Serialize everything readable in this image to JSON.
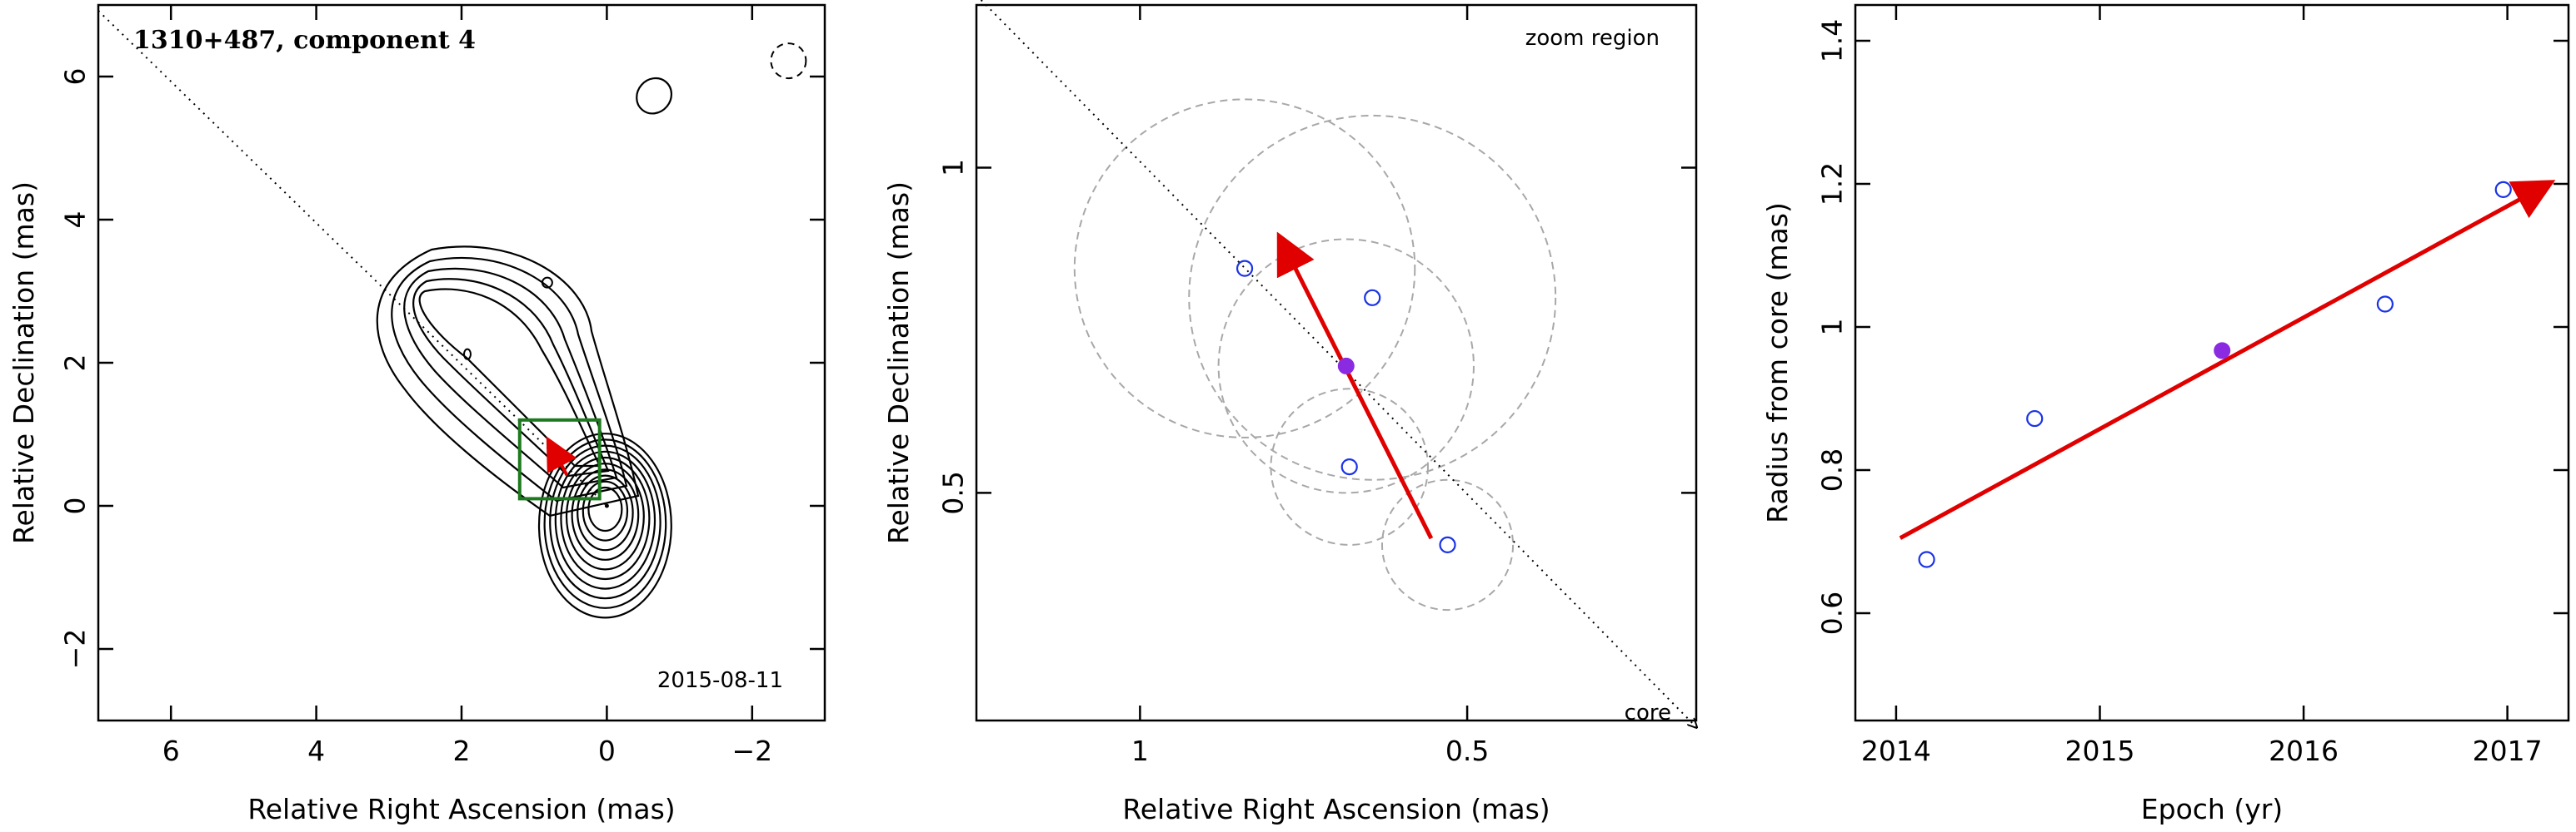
{
  "chart_data": [
    {
      "type": "contour",
      "title": "1310+487, component 4",
      "annotation": "2015-08-11",
      "xlabel": "Relative Right Ascension (mas)",
      "ylabel": "Relative Declination (mas)",
      "xlim": [
        7,
        -3
      ],
      "ylim": [
        -3,
        7
      ],
      "xticks": [
        6,
        4,
        2,
        0,
        -2
      ],
      "yticks": [
        -2,
        0,
        2,
        4,
        6
      ],
      "xtick_labels": [
        "6",
        "4",
        "2",
        "0",
        "−2"
      ],
      "ytick_labels": [
        "−2",
        "0",
        "2",
        "4",
        "6"
      ],
      "zoom_box": {
        "x": [
          1.2,
          0.1
        ],
        "y": [
          0.1,
          1.2
        ],
        "color": "#1e7a1e"
      },
      "direction_line": {
        "from": [
          7.0,
          6.92
        ],
        "to": [
          0,
          0
        ]
      },
      "motion_arrow": {
        "from": [
          0.55,
          0.43
        ],
        "to": [
          0.79,
          0.89
        ],
        "color": "#e00000"
      },
      "component_position": [
        0.69,
        0.7
      ],
      "core_position": [
        0,
        0
      ]
    },
    {
      "type": "scatter",
      "annotation": "zoom region",
      "core_label": "core",
      "xlabel": "Relative Right Ascension (mas)",
      "ylabel": "Relative Declination (mas)",
      "xlim": [
        1.25,
        0.15
      ],
      "ylim": [
        0.15,
        1.25
      ],
      "xticks": [
        1,
        0.5
      ],
      "yticks": [
        0.5,
        1
      ],
      "xtick_labels": [
        "1",
        "0.5"
      ],
      "ytick_labels": [
        "0.5",
        "1"
      ],
      "points": [
        {
          "x": 0.84,
          "y": 0.845,
          "radius": 0.26,
          "filled": false
        },
        {
          "x": 0.645,
          "y": 0.8,
          "radius": 0.28,
          "filled": false
        },
        {
          "x": 0.68,
          "y": 0.54,
          "radius": 0.12,
          "filled": false
        },
        {
          "x": 0.685,
          "y": 0.695,
          "radius": 0.195,
          "filled": true
        },
        {
          "x": 0.53,
          "y": 0.42,
          "radius": 0.1,
          "filled": false
        }
      ],
      "marker_color": "#1a33e6",
      "filled_color": "#8a2be2",
      "motion_arrow": {
        "from": [
          0.555,
          0.43
        ],
        "to": [
          0.785,
          0.89
        ],
        "color": "#e00000"
      },
      "direction_line": {
        "from": [
          1.25,
          1.265
        ],
        "to": [
          0.15,
          0.14
        ]
      }
    },
    {
      "type": "scatter",
      "xlabel": "Epoch (yr)",
      "ylabel": "Radius from core (mas)",
      "xlim": [
        2013.8,
        2017.3
      ],
      "ylim": [
        0.45,
        1.45
      ],
      "xticks": [
        2014,
        2015,
        2016,
        2017
      ],
      "yticks": [
        0.6,
        0.8,
        1.0,
        1.2,
        1.4
      ],
      "xtick_labels": [
        "2014",
        "2015",
        "2016",
        "2017"
      ],
      "ytick_labels": [
        "0.6",
        "0.8",
        "1",
        "1.2",
        "1.4"
      ],
      "x": [
        2014.15,
        2014.68,
        2015.6,
        2016.4,
        2016.98
      ],
      "y": [
        0.675,
        0.872,
        0.967,
        1.032,
        1.192
      ],
      "filled": [
        false,
        false,
        true,
        false,
        false
      ],
      "marker_color": "#1a33e6",
      "filled_color": "#8a2be2",
      "fit_arrow": {
        "from": [
          2014.02,
          0.705
        ],
        "to": [
          2017.2,
          1.2
        ],
        "color": "#e00000"
      }
    }
  ]
}
